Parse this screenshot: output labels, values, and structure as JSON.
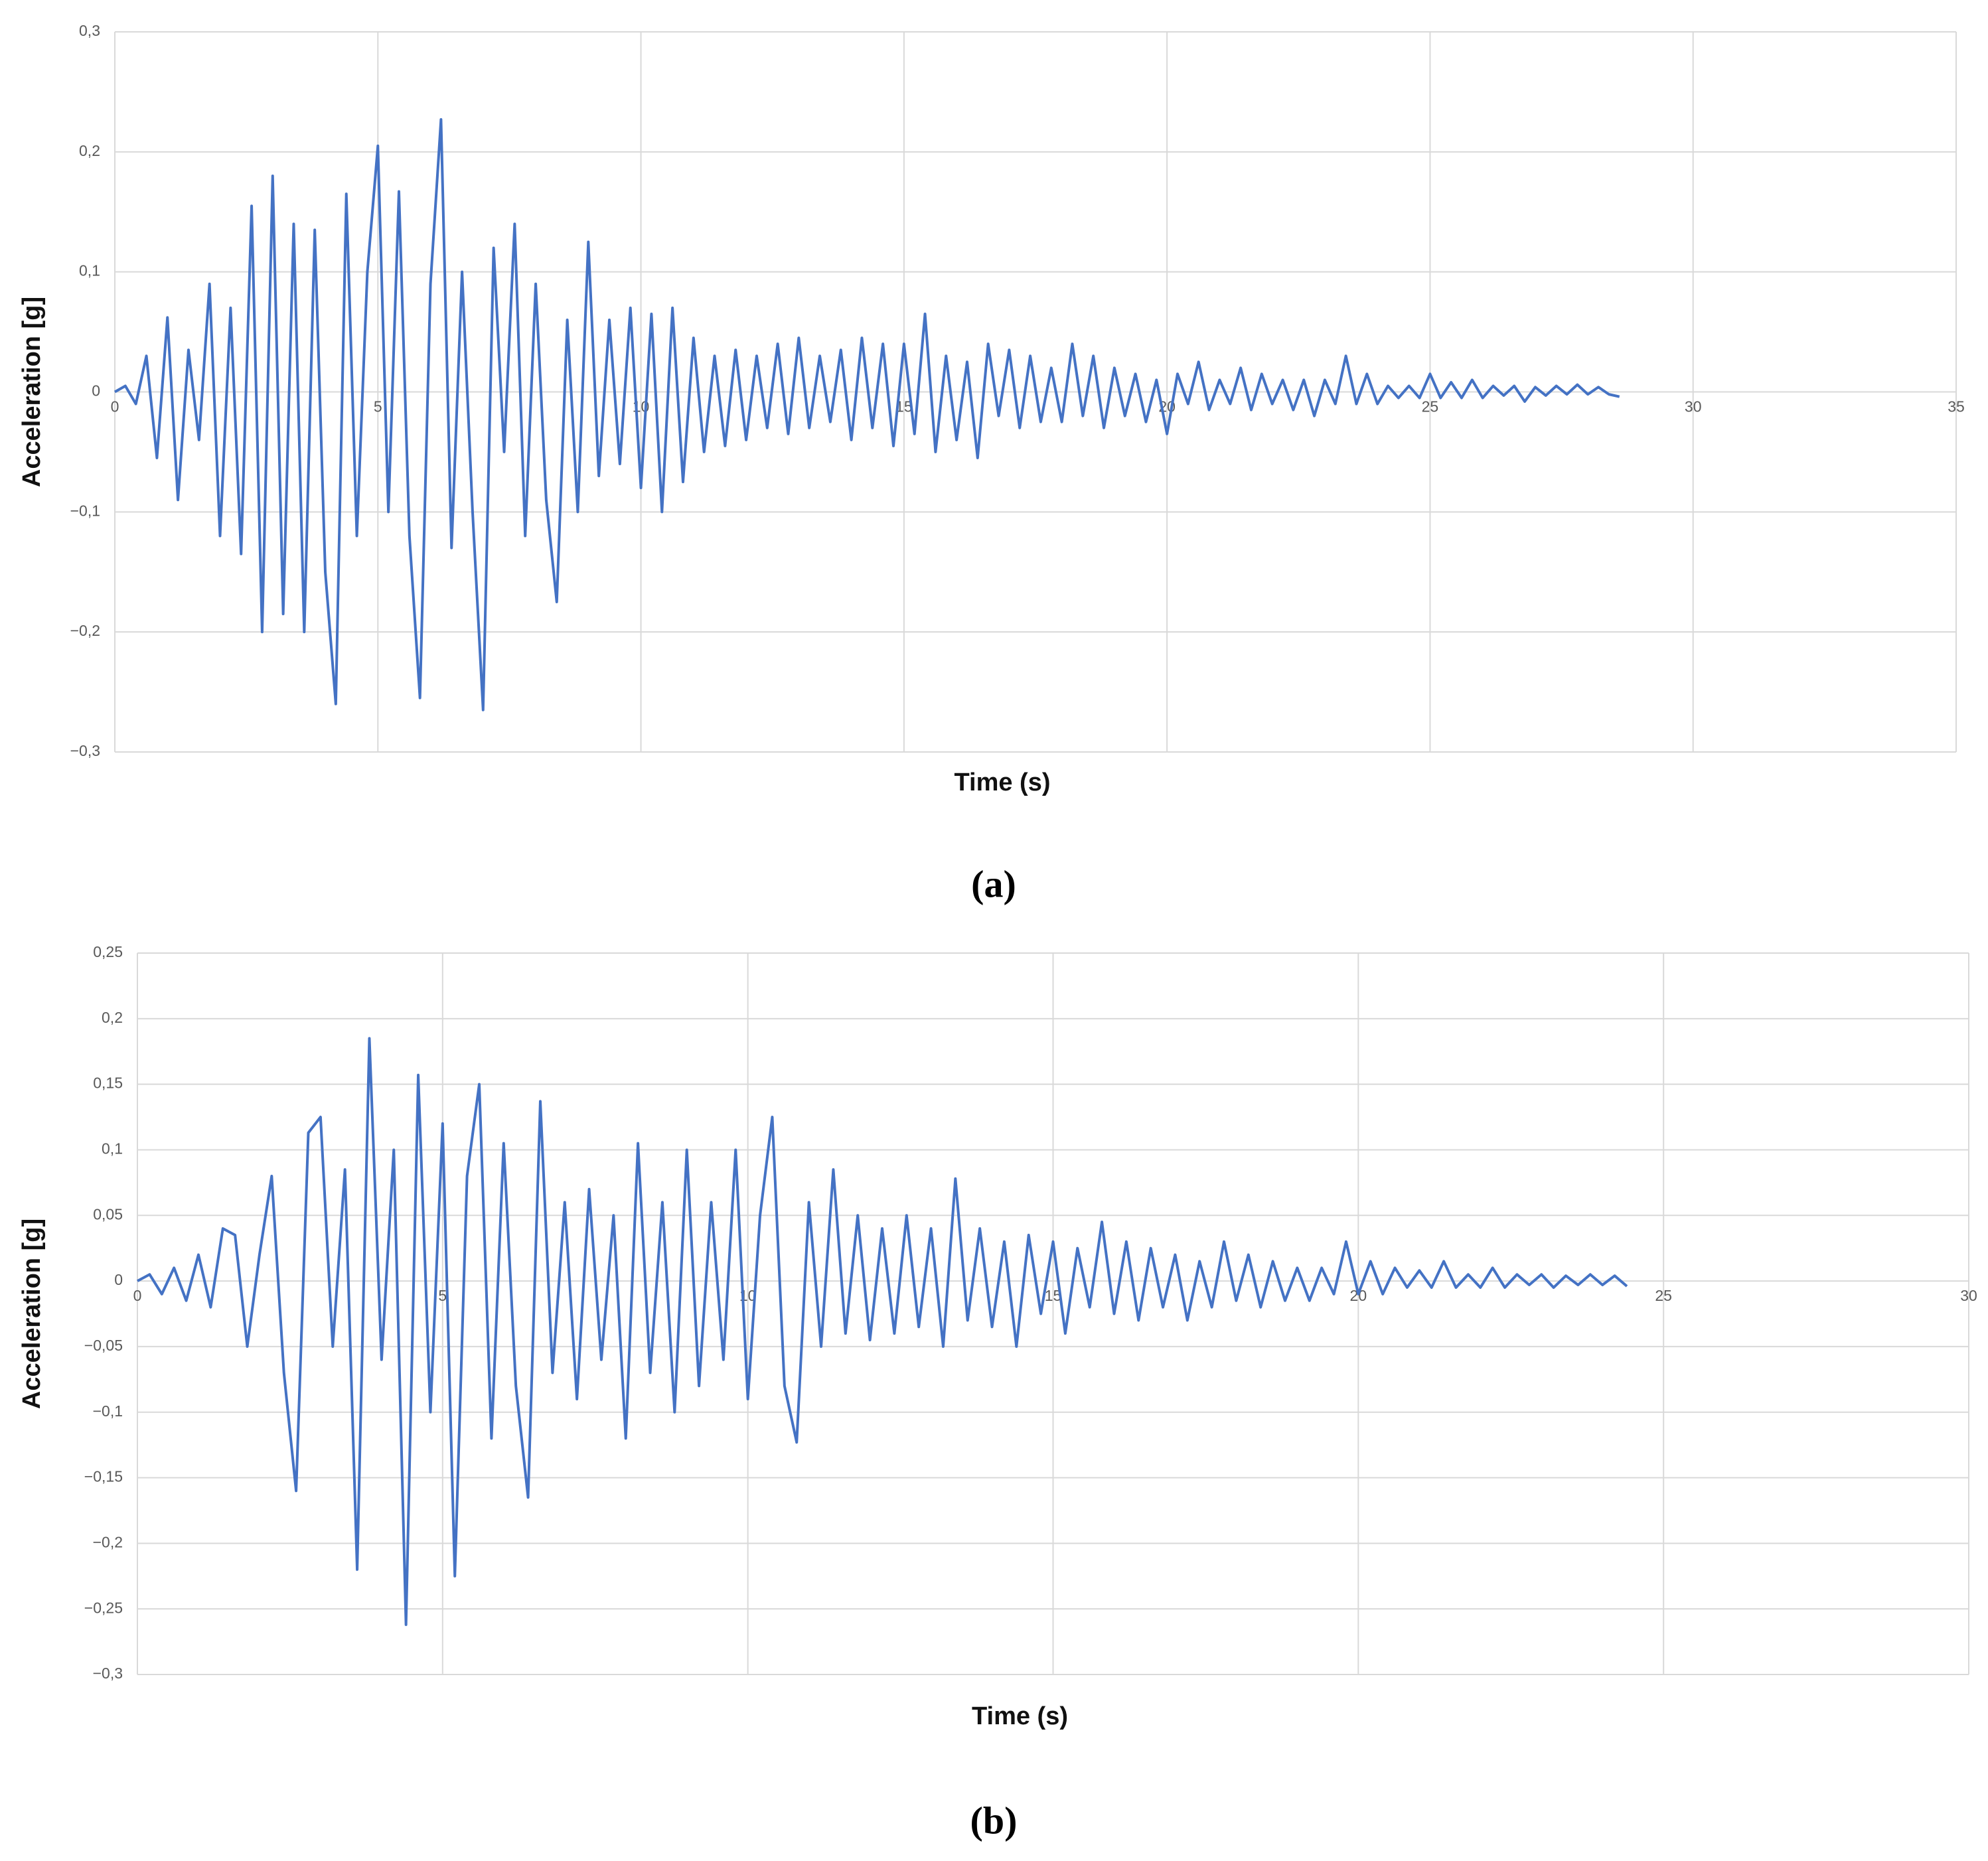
{
  "chart_data": [
    {
      "type": "line",
      "caption": "(a)",
      "xlabel": "Time (s)",
      "ylabel": "Acceleration [g]",
      "grid": true,
      "color": "#4472c4",
      "xlim": [
        0,
        35
      ],
      "xticks": [
        0,
        5,
        10,
        15,
        20,
        25,
        30,
        35
      ],
      "ylim": [
        -0.3,
        0.3
      ],
      "yticks": [
        {
          "value": -0.3,
          "label": "−0,3"
        },
        {
          "value": -0.2,
          "label": "−0,2"
        },
        {
          "value": -0.1,
          "label": "−0,1"
        },
        0,
        {
          "value": 0.1,
          "label": "0,1"
        },
        {
          "value": 0.2,
          "label": "0,2"
        },
        {
          "value": 0.3,
          "label": "0,3"
        }
      ],
      "x": [
        0,
        0.2,
        0.4,
        0.6,
        0.8,
        1.0,
        1.2,
        1.4,
        1.6,
        1.8,
        2.0,
        2.2,
        2.4,
        2.6,
        2.8,
        3.0,
        3.2,
        3.4,
        3.6,
        3.8,
        4.0,
        4.2,
        4.4,
        4.6,
        4.8,
        5.0,
        5.2,
        5.4,
        5.6,
        5.8,
        6.0,
        6.2,
        6.4,
        6.6,
        6.8,
        7.0,
        7.2,
        7.4,
        7.6,
        7.8,
        8.0,
        8.2,
        8.4,
        8.6,
        8.8,
        9.0,
        9.2,
        9.4,
        9.6,
        9.8,
        10.0,
        10.2,
        10.4,
        10.6,
        10.8,
        11.0,
        11.2,
        11.4,
        11.6,
        11.8,
        12.0,
        12.2,
        12.4,
        12.6,
        12.8,
        13.0,
        13.2,
        13.4,
        13.6,
        13.8,
        14.0,
        14.2,
        14.4,
        14.6,
        14.8,
        15.0,
        15.2,
        15.4,
        15.6,
        15.8,
        16.0,
        16.2,
        16.4,
        16.6,
        16.8,
        17.0,
        17.2,
        17.4,
        17.6,
        17.8,
        18.0,
        18.2,
        18.4,
        18.6,
        18.8,
        19.0,
        19.2,
        19.4,
        19.6,
        19.8,
        20.0,
        20.2,
        20.4,
        20.6,
        20.8,
        21.0,
        21.2,
        21.4,
        21.6,
        21.8,
        22.0,
        22.2,
        22.4,
        22.6,
        22.8,
        23.0,
        23.2,
        23.4,
        23.6,
        23.8,
        24.0,
        24.2,
        24.4,
        24.6,
        24.8,
        25.0,
        25.2,
        25.4,
        25.6,
        25.8,
        26.0,
        26.2,
        26.4,
        26.6,
        26.8,
        27.0,
        27.2,
        27.4,
        27.6,
        27.8,
        28.0,
        28.2,
        28.4,
        28.6
      ],
      "values": [
        0,
        0.005,
        -0.01,
        0.03,
        -0.055,
        0.062,
        -0.09,
        0.035,
        -0.04,
        0.09,
        -0.12,
        0.07,
        -0.135,
        0.155,
        -0.2,
        0.18,
        -0.185,
        0.14,
        -0.2,
        0.135,
        -0.15,
        -0.26,
        0.165,
        -0.12,
        0.1,
        0.205,
        -0.1,
        0.167,
        -0.12,
        -0.255,
        0.09,
        0.227,
        -0.13,
        0.1,
        -0.1,
        -0.265,
        0.12,
        -0.05,
        0.14,
        -0.12,
        0.09,
        -0.09,
        -0.175,
        0.06,
        -0.1,
        0.125,
        -0.07,
        0.06,
        -0.06,
        0.07,
        -0.08,
        0.065,
        -0.1,
        0.07,
        -0.075,
        0.045,
        -0.05,
        0.03,
        -0.045,
        0.035,
        -0.04,
        0.03,
        -0.03,
        0.04,
        -0.035,
        0.045,
        -0.03,
        0.03,
        -0.025,
        0.035,
        -0.04,
        0.045,
        -0.03,
        0.04,
        -0.045,
        0.04,
        -0.035,
        0.065,
        -0.05,
        0.03,
        -0.04,
        0.025,
        -0.055,
        0.04,
        -0.02,
        0.035,
        -0.03,
        0.03,
        -0.025,
        0.02,
        -0.025,
        0.04,
        -0.02,
        0.03,
        -0.03,
        0.02,
        -0.02,
        0.015,
        -0.025,
        0.01,
        -0.035,
        0.015,
        -0.01,
        0.025,
        -0.015,
        0.01,
        -0.01,
        0.02,
        -0.015,
        0.015,
        -0.01,
        0.01,
        -0.015,
        0.01,
        -0.02,
        0.01,
        -0.01,
        0.03,
        -0.01,
        0.015,
        -0.01,
        0.005,
        -0.005,
        0.005,
        -0.005,
        0.015,
        -0.005,
        0.008,
        -0.005,
        0.01,
        -0.005,
        0.005,
        -0.003,
        0.005,
        -0.008,
        0.004,
        -0.003,
        0.005,
        -0.002,
        0.006,
        -0.002,
        0.004,
        -0.002,
        -0.004
      ]
    },
    {
      "type": "line",
      "caption": "(b)",
      "xlabel": "Time (s)",
      "ylabel": "Acceleration [g]",
      "grid": true,
      "color": "#4472c4",
      "xlim": [
        0,
        30
      ],
      "xticks": [
        0,
        5,
        10,
        15,
        20,
        25,
        30
      ],
      "ylim": [
        -0.3,
        0.25
      ],
      "yticks": [
        {
          "value": -0.3,
          "label": "−0,3"
        },
        {
          "value": -0.25,
          "label": "−0,25"
        },
        {
          "value": -0.2,
          "label": "−0,2"
        },
        {
          "value": -0.15,
          "label": "−0,15"
        },
        {
          "value": -0.1,
          "label": "−0,1"
        },
        {
          "value": -0.05,
          "label": "−0,05"
        },
        0,
        {
          "value": 0.05,
          "label": "0,05"
        },
        {
          "value": 0.1,
          "label": "0,1"
        },
        {
          "value": 0.15,
          "label": "0,15"
        },
        {
          "value": 0.2,
          "label": "0,2"
        },
        {
          "value": 0.25,
          "label": "0,25"
        }
      ],
      "x": [
        0,
        0.2,
        0.4,
        0.6,
        0.8,
        1.0,
        1.2,
        1.4,
        1.6,
        1.8,
        2.0,
        2.2,
        2.4,
        2.6,
        2.8,
        3.0,
        3.2,
        3.4,
        3.6,
        3.8,
        4.0,
        4.2,
        4.4,
        4.6,
        4.8,
        5.0,
        5.2,
        5.4,
        5.6,
        5.8,
        6.0,
        6.2,
        6.4,
        6.6,
        6.8,
        7.0,
        7.2,
        7.4,
        7.6,
        7.8,
        8.0,
        8.2,
        8.4,
        8.6,
        8.8,
        9.0,
        9.2,
        9.4,
        9.6,
        9.8,
        10.0,
        10.2,
        10.4,
        10.6,
        10.8,
        11.0,
        11.2,
        11.4,
        11.6,
        11.8,
        12.0,
        12.2,
        12.4,
        12.6,
        12.8,
        13.0,
        13.2,
        13.4,
        13.6,
        13.8,
        14.0,
        14.2,
        14.4,
        14.6,
        14.8,
        15.0,
        15.2,
        15.4,
        15.6,
        15.8,
        16.0,
        16.2,
        16.4,
        16.6,
        16.8,
        17.0,
        17.2,
        17.4,
        17.6,
        17.8,
        18.0,
        18.2,
        18.4,
        18.6,
        18.8,
        19.0,
        19.2,
        19.4,
        19.6,
        19.8,
        20.0,
        20.2,
        20.4,
        20.6,
        20.8,
        21.0,
        21.2,
        21.4,
        21.6,
        21.8,
        22.0,
        22.2,
        22.4,
        22.6,
        22.8,
        23.0,
        23.2,
        23.4,
        23.6,
        23.8,
        24.0,
        24.2,
        24.4
      ],
      "values": [
        0,
        0.005,
        -0.01,
        0.01,
        -0.015,
        0.02,
        -0.02,
        0.04,
        0.035,
        -0.05,
        0.02,
        0.08,
        -0.07,
        -0.16,
        0.113,
        0.125,
        -0.05,
        0.085,
        -0.22,
        0.185,
        -0.06,
        0.1,
        -0.262,
        0.157,
        -0.1,
        0.12,
        -0.225,
        0.08,
        0.15,
        -0.12,
        0.105,
        -0.08,
        -0.165,
        0.137,
        -0.07,
        0.06,
        -0.09,
        0.07,
        -0.06,
        0.05,
        -0.12,
        0.105,
        -0.07,
        0.06,
        -0.1,
        0.1,
        -0.08,
        0.06,
        -0.06,
        0.1,
        -0.09,
        0.05,
        0.125,
        -0.08,
        -0.123,
        0.06,
        -0.05,
        0.085,
        -0.04,
        0.05,
        -0.045,
        0.04,
        -0.04,
        0.05,
        -0.035,
        0.04,
        -0.05,
        0.078,
        -0.03,
        0.04,
        -0.035,
        0.03,
        -0.05,
        0.035,
        -0.025,
        0.03,
        -0.04,
        0.025,
        -0.02,
        0.045,
        -0.025,
        0.03,
        -0.03,
        0.025,
        -0.02,
        0.02,
        -0.03,
        0.015,
        -0.02,
        0.03,
        -0.015,
        0.02,
        -0.02,
        0.015,
        -0.015,
        0.01,
        -0.015,
        0.01,
        -0.01,
        0.03,
        -0.01,
        0.015,
        -0.01,
        0.01,
        -0.005,
        0.008,
        -0.005,
        0.015,
        -0.005,
        0.005,
        -0.005,
        0.01,
        -0.005,
        0.005,
        -0.003,
        0.005,
        -0.005,
        0.004,
        -0.003,
        0.005,
        -0.003,
        0.004,
        -0.004
      ]
    }
  ]
}
